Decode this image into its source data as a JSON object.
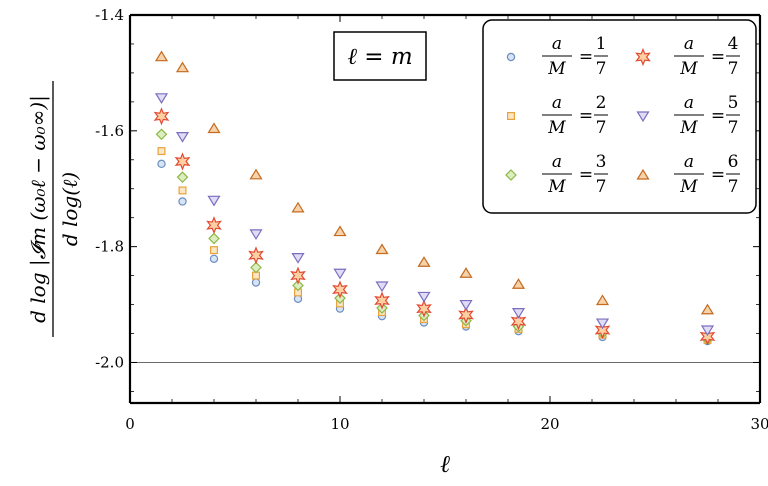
{
  "chart_data": {
    "type": "scatter",
    "annotation": "ℓ = m",
    "xlabel": "ℓ",
    "ylabel": {
      "numerator": "d log |𝓘m (ω₀ℓ − ω₀∞)|",
      "denominator": "d log(ℓ)"
    },
    "xlim": [
      0,
      30
    ],
    "ylim": [
      -2.07,
      -1.4
    ],
    "x_ticks": [
      0,
      10,
      20,
      30
    ],
    "x_tick_labels": [
      "0",
      "10",
      "20",
      "30"
    ],
    "y_ticks": [
      -2.0,
      -1.8,
      -1.6,
      -1.4
    ],
    "y_tick_labels": [
      "-2.0",
      "-1.8",
      "-1.6",
      "-1.4"
    ],
    "reference_line": -2.0,
    "legend_position": "top-right",
    "series": [
      {
        "name": "a/M = 1/7",
        "marker": "circle",
        "color": "#6c8ebf",
        "fill": "#d6e4f5",
        "x": [
          1.5,
          2.5,
          4,
          6,
          8,
          10,
          12,
          14,
          16,
          18.5,
          22.5,
          27.5
        ],
        "y": [
          -1.657,
          -1.722,
          -1.821,
          -1.862,
          -1.89,
          -1.907,
          -1.92,
          -1.931,
          -1.938,
          -1.946,
          -1.956,
          -1.963
        ]
      },
      {
        "name": "a/M = 2/7",
        "marker": "square",
        "color": "#e8a33c",
        "fill": "#fbe6c6",
        "x": [
          1.5,
          2.5,
          4,
          6,
          8,
          10,
          12,
          14,
          16,
          18.5,
          22.5,
          27.5
        ],
        "y": [
          -1.635,
          -1.703,
          -1.806,
          -1.85,
          -1.879,
          -1.898,
          -1.913,
          -1.925,
          -1.934,
          -1.942,
          -1.952,
          -1.961
        ]
      },
      {
        "name": "a/M = 3/7",
        "marker": "diamond",
        "color": "#8cb845",
        "fill": "#dcedc1",
        "x": [
          1.5,
          2.5,
          4,
          6,
          8,
          10,
          12,
          14,
          16,
          18.5,
          22.5,
          27.5
        ],
        "y": [
          -1.606,
          -1.68,
          -1.786,
          -1.836,
          -1.867,
          -1.889,
          -1.906,
          -1.919,
          -1.928,
          -1.938,
          -1.949,
          -1.959
        ]
      },
      {
        "name": "a/M = 4/7",
        "marker": "star",
        "color": "#e34a33",
        "fill": "#fdd0a2",
        "x": [
          1.5,
          2.5,
          4,
          6,
          8,
          10,
          12,
          14,
          16,
          18.5,
          22.5,
          27.5
        ],
        "y": [
          -1.575,
          -1.653,
          -1.763,
          -1.815,
          -1.85,
          -1.874,
          -1.893,
          -1.907,
          -1.918,
          -1.929,
          -1.944,
          -1.955
        ]
      },
      {
        "name": "a/M = 5/7",
        "marker": "triangle-down",
        "color": "#7a6fbf",
        "fill": "#e0dcf5",
        "x": [
          1.5,
          2.5,
          4,
          6,
          8,
          10,
          12,
          14,
          16,
          18.5,
          22.5,
          27.5
        ],
        "y": [
          -1.543,
          -1.61,
          -1.72,
          -1.778,
          -1.819,
          -1.846,
          -1.868,
          -1.886,
          -1.9,
          -1.914,
          -1.932,
          -1.944
        ]
      },
      {
        "name": "a/M = 6/7",
        "marker": "triangle-up",
        "color": "#c56a1f",
        "fill": "#f7d3ab",
        "x": [
          1.5,
          2.5,
          4,
          6,
          8,
          10,
          12,
          14,
          16,
          18.5,
          22.5,
          27.5
        ],
        "y": [
          -1.472,
          -1.491,
          -1.596,
          -1.676,
          -1.733,
          -1.774,
          -1.805,
          -1.827,
          -1.846,
          -1.865,
          -1.893,
          -1.909
        ]
      }
    ]
  }
}
